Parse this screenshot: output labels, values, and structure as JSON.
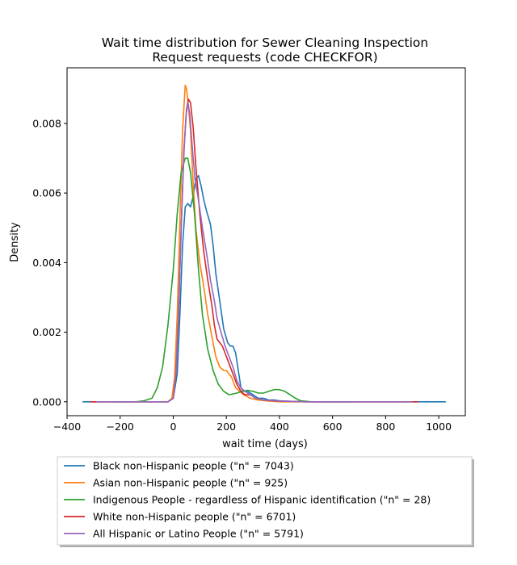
{
  "chart_data": {
    "type": "line",
    "title_lines": [
      "Wait time distribution  for Sewer Cleaning Inspection",
      "Request requests (code CHECKFOR)"
    ],
    "xlabel": "wait time (days)",
    "ylabel": "Density",
    "xlim": [
      -400,
      1100
    ],
    "ylim": [
      -0.0004,
      0.0096
    ],
    "xticks": [
      -400,
      -200,
      0,
      200,
      400,
      600,
      800,
      1000
    ],
    "xtick_labels": [
      "−400",
      "−200",
      "0",
      "200",
      "400",
      "600",
      "800",
      "1000"
    ],
    "yticks": [
      0,
      0.002,
      0.004,
      0.006,
      0.008
    ],
    "ytick_labels": [
      "0.000",
      "0.002",
      "0.004",
      "0.006",
      "0.008"
    ],
    "grid": false,
    "legend_position": "below plot, left",
    "series": [
      {
        "name": "Black non-Hispanic people (\"n\" = 7043)",
        "color": "#1f77b4",
        "points": [
          [
            -340,
            0
          ],
          [
            -100,
            0
          ],
          [
            -20,
            0
          ],
          [
            0,
            0.0001
          ],
          [
            15,
            0.0008
          ],
          [
            25,
            0.0025
          ],
          [
            35,
            0.0045
          ],
          [
            45,
            0.0056
          ],
          [
            55,
            0.0057
          ],
          [
            65,
            0.0056
          ],
          [
            75,
            0.0059
          ],
          [
            85,
            0.0064
          ],
          [
            95,
            0.0065
          ],
          [
            105,
            0.0062
          ],
          [
            115,
            0.0058
          ],
          [
            125,
            0.0055
          ],
          [
            140,
            0.0051
          ],
          [
            150,
            0.0045
          ],
          [
            160,
            0.0037
          ],
          [
            175,
            0.0029
          ],
          [
            190,
            0.0021
          ],
          [
            205,
            0.0017
          ],
          [
            215,
            0.0016
          ],
          [
            225,
            0.0016
          ],
          [
            235,
            0.0014
          ],
          [
            245,
            0.0009
          ],
          [
            255,
            0.0004
          ],
          [
            265,
            0.0003
          ],
          [
            280,
            0.0003
          ],
          [
            300,
            0.0002
          ],
          [
            320,
            0.0001
          ],
          [
            340,
            0.0001
          ],
          [
            360,
            5e-05
          ],
          [
            380,
            5e-05
          ],
          [
            400,
            3e-05
          ],
          [
            450,
            1e-05
          ],
          [
            500,
            0
          ],
          [
            600,
            0
          ],
          [
            700,
            0
          ],
          [
            800,
            0
          ],
          [
            900,
            0
          ],
          [
            1025,
            0
          ]
        ]
      },
      {
        "name": "Asian non-Hispanic people (\"n\" = 925)",
        "color": "#ff7f0e",
        "points": [
          [
            -310,
            0
          ],
          [
            -100,
            0
          ],
          [
            -20,
            0
          ],
          [
            -5,
            0.0001
          ],
          [
            5,
            0.0007
          ],
          [
            15,
            0.0025
          ],
          [
            25,
            0.0052
          ],
          [
            35,
            0.0078
          ],
          [
            45,
            0.0091
          ],
          [
            50,
            0.009
          ],
          [
            55,
            0.0087
          ],
          [
            65,
            0.0078
          ],
          [
            75,
            0.0063
          ],
          [
            85,
            0.005
          ],
          [
            100,
            0.004
          ],
          [
            115,
            0.0033
          ],
          [
            130,
            0.0025
          ],
          [
            145,
            0.0019
          ],
          [
            160,
            0.0013
          ],
          [
            175,
            0.001
          ],
          [
            190,
            0.0009
          ],
          [
            200,
            0.0009
          ],
          [
            210,
            0.0008
          ],
          [
            220,
            0.0007
          ],
          [
            235,
            0.0004
          ],
          [
            250,
            0.0003
          ],
          [
            265,
            0.0002
          ],
          [
            290,
            0.0001
          ],
          [
            320,
            5e-05
          ],
          [
            360,
            2e-05
          ],
          [
            400,
            0
          ],
          [
            500,
            0
          ],
          [
            600,
            0
          ],
          [
            700,
            0
          ],
          [
            800,
            0
          ],
          [
            920,
            0
          ]
        ]
      },
      {
        "name": "Indigenous People - regardless of Hispanic identification (\"n\" = 28)",
        "color": "#2ca02c",
        "points": [
          [
            -220,
            0
          ],
          [
            -140,
            0
          ],
          [
            -110,
            3e-05
          ],
          [
            -80,
            0.0001
          ],
          [
            -60,
            0.0004
          ],
          [
            -40,
            0.001
          ],
          [
            -20,
            0.0022
          ],
          [
            0,
            0.0038
          ],
          [
            15,
            0.0054
          ],
          [
            30,
            0.0066
          ],
          [
            45,
            0.007
          ],
          [
            55,
            0.007
          ],
          [
            65,
            0.0066
          ],
          [
            80,
            0.0054
          ],
          [
            95,
            0.0038
          ],
          [
            110,
            0.0025
          ],
          [
            130,
            0.0015
          ],
          [
            150,
            0.0009
          ],
          [
            170,
            0.0005
          ],
          [
            190,
            0.0003
          ],
          [
            210,
            0.0002
          ],
          [
            240,
            0.00025
          ],
          [
            260,
            0.0003
          ],
          [
            280,
            0.00033
          ],
          [
            300,
            0.0003
          ],
          [
            320,
            0.00025
          ],
          [
            340,
            0.00025
          ],
          [
            360,
            0.0003
          ],
          [
            380,
            0.00035
          ],
          [
            400,
            0.00035
          ],
          [
            420,
            0.0003
          ],
          [
            440,
            0.0002
          ],
          [
            460,
            0.0001
          ],
          [
            480,
            3e-05
          ],
          [
            520,
            0
          ],
          [
            600,
            0
          ],
          [
            660,
            0
          ]
        ]
      },
      {
        "name": "White non-Hispanic people (\"n\" = 6701)",
        "color": "#d62728",
        "points": [
          [
            -310,
            0
          ],
          [
            -100,
            0
          ],
          [
            -20,
            0
          ],
          [
            0,
            0.0001
          ],
          [
            10,
            0.0008
          ],
          [
            20,
            0.0025
          ],
          [
            30,
            0.005
          ],
          [
            40,
            0.0072
          ],
          [
            50,
            0.0084
          ],
          [
            57,
            0.0087
          ],
          [
            65,
            0.0086
          ],
          [
            75,
            0.0079
          ],
          [
            85,
            0.0068
          ],
          [
            100,
            0.0054
          ],
          [
            115,
            0.0043
          ],
          [
            130,
            0.0035
          ],
          [
            145,
            0.0028
          ],
          [
            155,
            0.0022
          ],
          [
            165,
            0.0018
          ],
          [
            175,
            0.0017
          ],
          [
            185,
            0.0016
          ],
          [
            195,
            0.0014
          ],
          [
            205,
            0.0012
          ],
          [
            215,
            0.001
          ],
          [
            225,
            0.0008
          ],
          [
            240,
            0.0005
          ],
          [
            255,
            0.0003
          ],
          [
            270,
            0.0002
          ],
          [
            290,
            0.0002
          ],
          [
            310,
            0.0001
          ],
          [
            340,
            5e-05
          ],
          [
            400,
            2e-05
          ],
          [
            500,
            0
          ],
          [
            600,
            0
          ],
          [
            700,
            0
          ],
          [
            800,
            0
          ],
          [
            920,
            0
          ]
        ]
      },
      {
        "name": "All Hispanic or Latino People (\"n\" = 5791)",
        "color": "#9467bd",
        "points": [
          [
            -290,
            0
          ],
          [
            -100,
            0
          ],
          [
            -20,
            0
          ],
          [
            0,
            0.0001
          ],
          [
            10,
            0.0008
          ],
          [
            20,
            0.0025
          ],
          [
            30,
            0.005
          ],
          [
            40,
            0.0071
          ],
          [
            48,
            0.0082
          ],
          [
            55,
            0.0086
          ],
          [
            62,
            0.0083
          ],
          [
            72,
            0.0073
          ],
          [
            82,
            0.0064
          ],
          [
            95,
            0.0058
          ],
          [
            110,
            0.005
          ],
          [
            125,
            0.0043
          ],
          [
            140,
            0.0035
          ],
          [
            155,
            0.0029
          ],
          [
            165,
            0.0024
          ],
          [
            180,
            0.002
          ],
          [
            195,
            0.0016
          ],
          [
            210,
            0.0013
          ],
          [
            225,
            0.001
          ],
          [
            240,
            0.0006
          ],
          [
            255,
            0.0004
          ],
          [
            270,
            0.0003
          ],
          [
            290,
            0.0002
          ],
          [
            310,
            0.0001
          ],
          [
            340,
            5e-05
          ],
          [
            400,
            2e-05
          ],
          [
            500,
            0
          ],
          [
            600,
            0
          ],
          [
            700,
            0
          ],
          [
            800,
            0
          ],
          [
            900,
            0
          ]
        ]
      }
    ]
  }
}
